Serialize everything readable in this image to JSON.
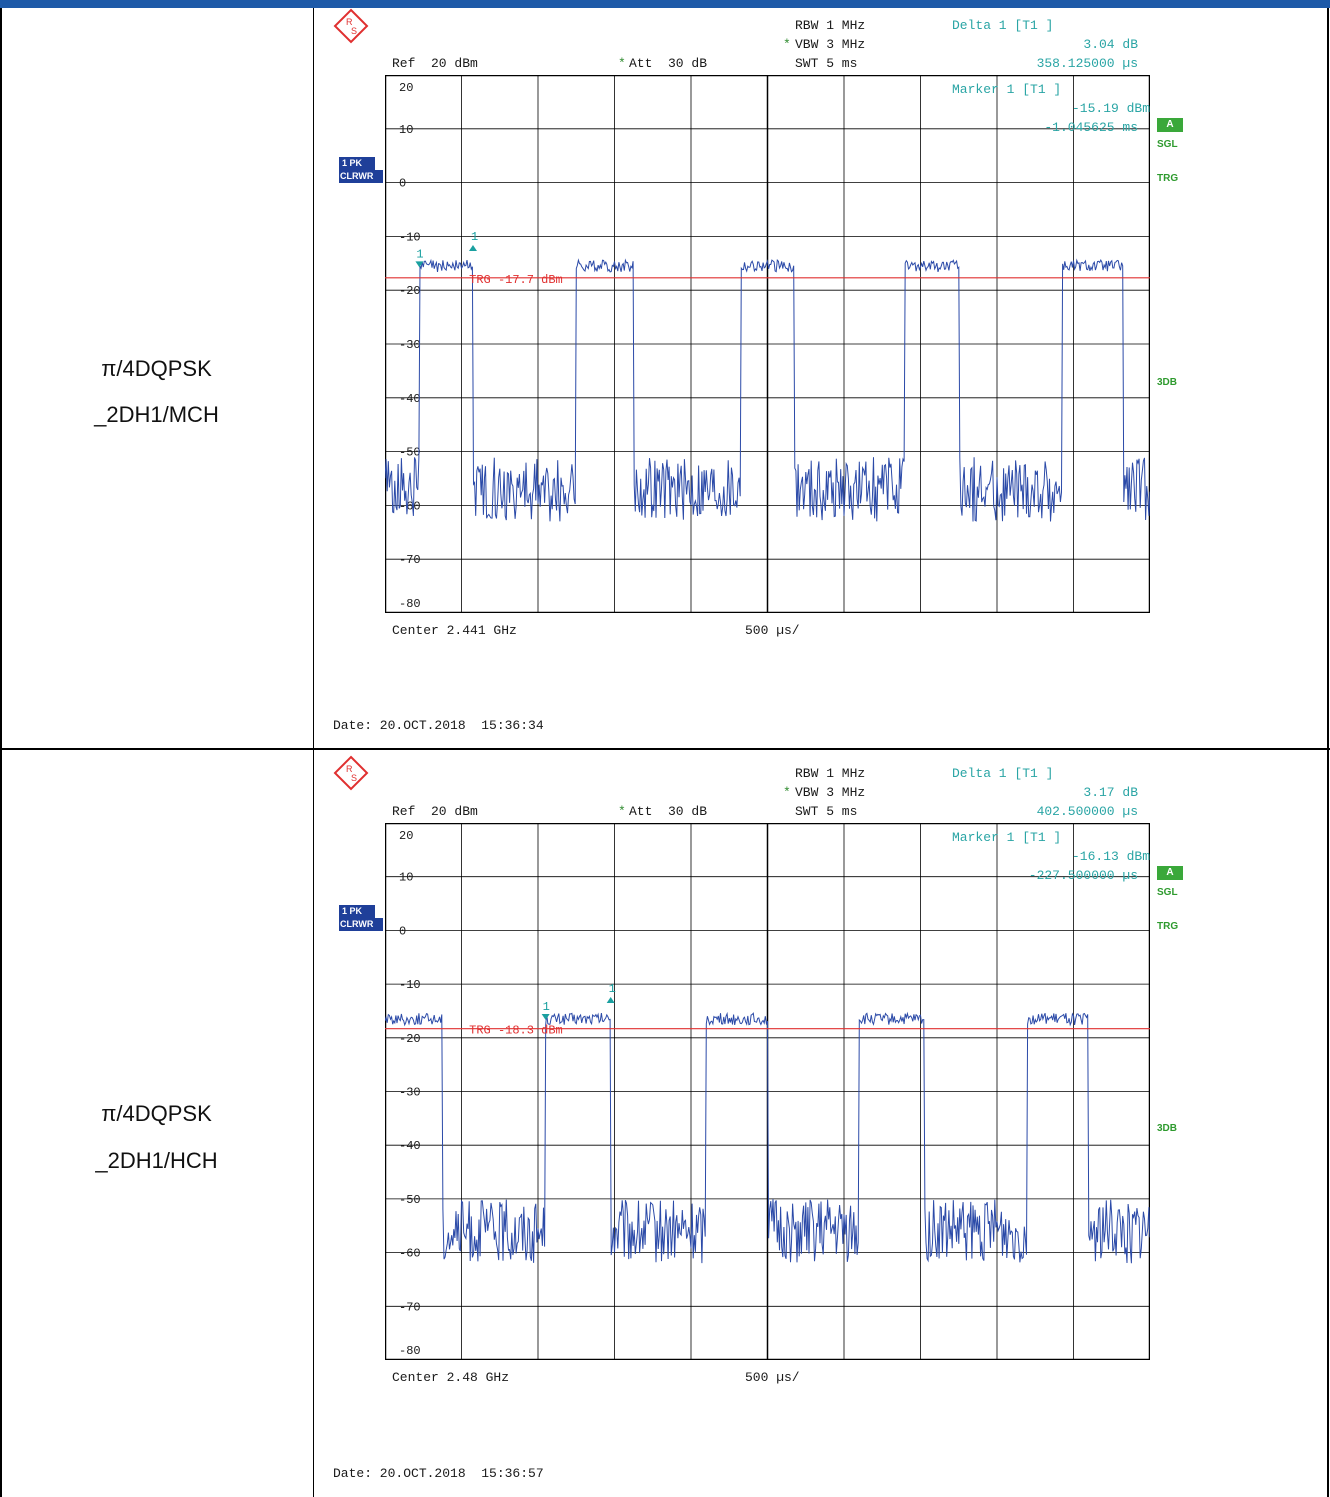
{
  "rows": [
    {
      "mode_line1": "π/4DQPSK",
      "mode_line2": "_2DH1/MCH",
      "rbw": "RBW 1 MHz",
      "vbw": "VBW 3 MHz",
      "swt": "SWT 5 ms",
      "ref": "Ref  20 dBm",
      "att": "Att  30 dB",
      "delta_title": "Delta 1 [T1 ]",
      "delta_value": "3.04 dB",
      "delta_time": "358.125000 µs",
      "marker_title": "Marker 1 [T1 ]",
      "marker_value": "-15.19 dBm",
      "marker_time": "-1.045625 ms",
      "trg_label": "TRG -17.7 dBm",
      "center": "Center 2.441 GHz",
      "span": "500 µs/",
      "date": "Date: 20.OCT.2018  15:36:34",
      "side_a": "A",
      "side_sgl": "SGL",
      "side_trg": "TRG",
      "side_3db": "3DB",
      "trace_badge_1": "1 PK",
      "trace_badge_2": "CLRWR",
      "marker_label": "1",
      "star": "*",
      "y_ticks": [
        "20",
        "10",
        "0",
        "-10",
        "-20",
        "-30",
        "-40",
        "-50",
        "-60",
        "-70",
        "-80"
      ]
    },
    {
      "mode_line1": "π/4DQPSK",
      "mode_line2": "_2DH1/HCH",
      "rbw": "RBW 1 MHz",
      "vbw": "VBW 3 MHz",
      "swt": "SWT 5 ms",
      "ref": "Ref  20 dBm",
      "att": "Att  30 dB",
      "delta_title": "Delta 1 [T1 ]",
      "delta_value": "3.17 dB",
      "delta_time": "402.500000 µs",
      "marker_title": "Marker 1 [T1 ]",
      "marker_value": "-16.13 dBm",
      "marker_time": "-227.500000 µs",
      "trg_label": "TRG -18.3 dBm",
      "center": "Center 2.48 GHz",
      "span": "500 µs/",
      "date": "Date: 20.OCT.2018  15:36:57",
      "side_a": "A",
      "side_sgl": "SGL",
      "side_trg": "TRG",
      "side_3db": "3DB",
      "trace_badge_1": "1 PK",
      "trace_badge_2": "CLRWR",
      "marker_label": "1",
      "star": "*",
      "y_ticks": [
        "20",
        "10",
        "0",
        "-10",
        "-20",
        "-30",
        "-40",
        "-50",
        "-60",
        "-70",
        "-80"
      ]
    }
  ],
  "colors": {
    "trace": "#2b4aa8",
    "trigger": "#e03030",
    "marker": "#1aa0a0",
    "header_bar": "#1e5aa8"
  },
  "plots": [
    {
      "ref_level_dbm": 20,
      "db_per_div": 10,
      "trigger_dbm": -17.7,
      "noise_floor_dbm": -57,
      "burst_level_dbm": -15.5,
      "bursts_divisions": [
        [
          0.45,
          1.15
        ],
        [
          2.5,
          3.25
        ],
        [
          4.65,
          5.35
        ],
        [
          6.8,
          7.5
        ],
        [
          8.85,
          9.65
        ]
      ],
      "marker1_division": 0.45,
      "marker1_dbm": -15.19,
      "delta_division": 1.15,
      "delta_dbm": -12.15
    },
    {
      "ref_level_dbm": 20,
      "db_per_div": 10,
      "trigger_dbm": -18.3,
      "noise_floor_dbm": -56,
      "burst_level_dbm": -16.5,
      "bursts_divisions": [
        [
          0,
          0.75
        ],
        [
          2.1,
          2.95
        ],
        [
          4.2,
          5.0
        ],
        [
          6.2,
          7.05
        ],
        [
          8.4,
          9.2
        ]
      ],
      "marker1_division": 2.1,
      "marker1_dbm": -16.13,
      "delta_division": 2.95,
      "delta_dbm": -12.96
    }
  ]
}
